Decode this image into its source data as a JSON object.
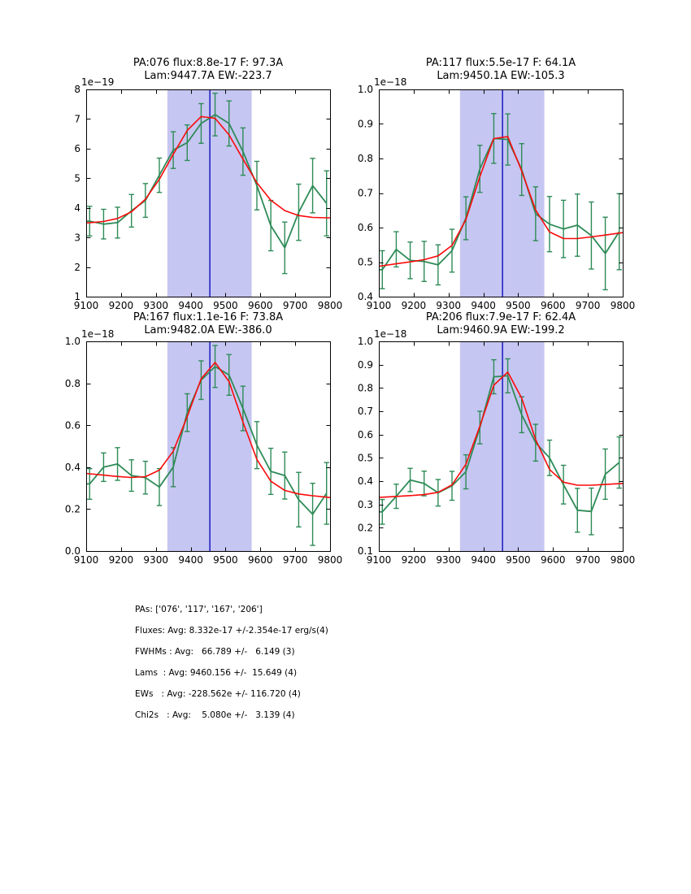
{
  "figure": {
    "background": "#ffffff",
    "colors": {
      "data_line": "#2e8b57",
      "error_bar": "#2e8b57",
      "fit_line": "#fb0b0b",
      "band": "#c6c6f2",
      "vline": "#0000bb",
      "frame": "#000000"
    }
  },
  "chart_data": [
    {
      "type": "line",
      "title_line1": "PA:076 flux:8.8e-17 F: 97.3A",
      "title_line2": "Lam:9447.7A EW:-223.7",
      "y_offset_label": "1e−19",
      "xlim": [
        9100,
        9800
      ],
      "ylim": [
        1,
        8
      ],
      "xtick_vals": [
        9100,
        9200,
        9300,
        9400,
        9500,
        9600,
        9700,
        9800
      ],
      "xtick_labels": [
        "9100",
        "9200",
        "9300",
        "9400",
        "9500",
        "9600",
        "9700",
        "9800"
      ],
      "ytick_vals": [
        1,
        2,
        3,
        4,
        5,
        6,
        7,
        8
      ],
      "ytick_labels": [
        "1",
        "2",
        "3",
        "4",
        "5",
        "6",
        "7",
        "8"
      ],
      "band_x": [
        9333,
        9575
      ],
      "vline_x": 9455,
      "series": [
        {
          "name": "spectrum-data",
          "x": [
            9110,
            9150,
            9190,
            9230,
            9270,
            9310,
            9350,
            9390,
            9430,
            9470,
            9510,
            9550,
            9590,
            9630,
            9670,
            9710,
            9750,
            9790
          ],
          "y": [
            3.55,
            3.45,
            3.5,
            3.9,
            4.25,
            5.1,
            5.95,
            6.2,
            6.85,
            7.15,
            6.85,
            5.9,
            4.75,
            3.4,
            2.65,
            3.85,
            4.75,
            4.15
          ],
          "yerr": [
            0.5,
            0.5,
            0.52,
            0.55,
            0.57,
            0.58,
            0.62,
            0.6,
            0.67,
            0.72,
            0.76,
            0.8,
            0.82,
            0.85,
            0.87,
            0.95,
            0.92,
            1.1
          ]
        },
        {
          "name": "gaussian-fit",
          "fit": {
            "base0": 3.48,
            "slope_per_A": 0.00025,
            "amp": 3.56,
            "center": 9445,
            "sigma": 100
          }
        }
      ]
    },
    {
      "type": "line",
      "title_line1": "PA:117 flux:5.5e-17 F: 64.1A",
      "title_line2": "Lam:9450.1A EW:-105.3",
      "y_offset_label": "1e−18",
      "xlim": [
        9100,
        9800
      ],
      "ylim": [
        0.4,
        1.0
      ],
      "xtick_vals": [
        9100,
        9200,
        9300,
        9400,
        9500,
        9600,
        9700,
        9800
      ],
      "xtick_labels": [
        "9100",
        "9200",
        "9300",
        "9400",
        "9500",
        "9600",
        "9700",
        "9800"
      ],
      "ytick_vals": [
        0.4,
        0.5,
        0.6,
        0.7,
        0.8,
        0.9,
        1.0
      ],
      "ytick_labels": [
        "0.4",
        "0.5",
        "0.6",
        "0.7",
        "0.8",
        "0.9",
        "1.0"
      ],
      "band_x": [
        9333,
        9575
      ],
      "vline_x": 9455,
      "series": [
        {
          "name": "spectrum-data",
          "x": [
            9110,
            9150,
            9190,
            9230,
            9270,
            9310,
            9350,
            9390,
            9430,
            9470,
            9510,
            9550,
            9590,
            9630,
            9670,
            9710,
            9750,
            9790
          ],
          "y": [
            0.478,
            0.537,
            0.505,
            0.502,
            0.492,
            0.533,
            0.627,
            0.77,
            0.858,
            0.855,
            0.768,
            0.64,
            0.61,
            0.596,
            0.607,
            0.577,
            0.525,
            0.588
          ],
          "yerr": [
            0.055,
            0.051,
            0.053,
            0.058,
            0.058,
            0.062,
            0.062,
            0.068,
            0.072,
            0.074,
            0.075,
            0.078,
            0.08,
            0.083,
            0.09,
            0.097,
            0.105,
            0.11
          ]
        },
        {
          "name": "gaussian-fit",
          "fit": {
            "base0": 0.488,
            "slope_per_A": 0.000139,
            "amp": 0.34,
            "center": 9450,
            "sigma": 64
          }
        }
      ]
    },
    {
      "type": "line",
      "title_line1": "PA:167 flux:1.1e-16 F: 73.8A",
      "title_line2": "Lam:9482.0A EW:-386.0",
      "y_offset_label": "1e−18",
      "xlim": [
        9100,
        9800
      ],
      "ylim": [
        0.0,
        1.0
      ],
      "xtick_vals": [
        9100,
        9200,
        9300,
        9400,
        9500,
        9600,
        9700,
        9800
      ],
      "xtick_labels": [
        "9100",
        "9200",
        "9300",
        "9400",
        "9500",
        "9600",
        "9700",
        "9800"
      ],
      "ytick_vals": [
        0.0,
        0.2,
        0.4,
        0.6,
        0.8,
        1.0
      ],
      "ytick_labels": [
        "0.0",
        "0.2",
        "0.4",
        "0.6",
        "0.8",
        "1.0"
      ],
      "band_x": [
        9333,
        9575
      ],
      "vline_x": 9455,
      "series": [
        {
          "name": "spectrum-data",
          "x": [
            9110,
            9150,
            9190,
            9230,
            9270,
            9310,
            9350,
            9390,
            9430,
            9470,
            9510,
            9550,
            9590,
            9630,
            9670,
            9710,
            9750,
            9790
          ],
          "y": [
            0.32,
            0.4,
            0.415,
            0.36,
            0.35,
            0.305,
            0.4,
            0.66,
            0.815,
            0.88,
            0.84,
            0.68,
            0.505,
            0.38,
            0.36,
            0.245,
            0.175,
            0.275
          ],
          "yerr": [
            0.073,
            0.068,
            0.078,
            0.075,
            0.078,
            0.088,
            0.093,
            0.09,
            0.092,
            0.1,
            0.097,
            0.106,
            0.112,
            0.11,
            0.112,
            0.13,
            0.148,
            0.147
          ]
        },
        {
          "name": "gaussian-fit",
          "fit": {
            "base0": 0.37,
            "slope_per_A": -0.000164,
            "amp": 0.59,
            "center": 9470,
            "sigma": 72
          }
        }
      ]
    },
    {
      "type": "line",
      "title_line1": "PA:206 flux:7.9e-17 F: 62.4A",
      "title_line2": "Lam:9460.9A EW:-199.2",
      "y_offset_label": "1e−18",
      "xlim": [
        9100,
        9800
      ],
      "ylim": [
        0.1,
        1.0
      ],
      "xtick_vals": [
        9100,
        9200,
        9300,
        9400,
        9500,
        9600,
        9700,
        9800
      ],
      "xtick_labels": [
        "9100",
        "9200",
        "9300",
        "9400",
        "9500",
        "9600",
        "9700",
        "9800"
      ],
      "ytick_vals": [
        0.1,
        0.2,
        0.3,
        0.4,
        0.5,
        0.6,
        0.7,
        0.8,
        0.9,
        1.0
      ],
      "ytick_labels": [
        "0.1",
        "0.2",
        "0.3",
        "0.4",
        "0.5",
        "0.6",
        "0.7",
        "0.8",
        "0.9",
        "1.0"
      ],
      "band_x": [
        9333,
        9575
      ],
      "vline_x": 9455,
      "series": [
        {
          "name": "spectrum-data",
          "x": [
            9110,
            9150,
            9190,
            9230,
            9270,
            9310,
            9350,
            9390,
            9430,
            9470,
            9510,
            9550,
            9590,
            9630,
            9670,
            9710,
            9750,
            9790
          ],
          "y": [
            0.268,
            0.335,
            0.405,
            0.39,
            0.35,
            0.38,
            0.44,
            0.63,
            0.848,
            0.852,
            0.685,
            0.565,
            0.5,
            0.385,
            0.275,
            0.27,
            0.43,
            0.48
          ],
          "yerr": [
            0.053,
            0.052,
            0.05,
            0.053,
            0.057,
            0.062,
            0.073,
            0.07,
            0.073,
            0.073,
            0.077,
            0.079,
            0.076,
            0.083,
            0.094,
            0.1,
            0.108,
            0.11
          ]
        },
        {
          "name": "gaussian-fit",
          "fit": {
            "base0": 0.33,
            "slope_per_A": 8.57e-05,
            "amp": 0.51,
            "center": 9462,
            "sigma": 66
          }
        }
      ]
    }
  ],
  "fit_sample_x": [
    9100,
    9110,
    9150,
    9190,
    9230,
    9270,
    9310,
    9350,
    9390,
    9430,
    9470,
    9510,
    9550,
    9590,
    9630,
    9670,
    9710,
    9750,
    9790,
    9800
  ],
  "summary": {
    "lines": [
      "PAs: ['076', '117', '167', '206']",
      "Fluxes: Avg: 8.332e-17 +/-2.354e-17 erg/s(4)",
      "FWHMs : Avg:   66.789 +/-   6.149 (3)",
      "Lams  : Avg: 9460.156 +/-  15.649 (4)",
      "EWs   : Avg: -228.562e +/- 116.720 (4)",
      "Chi2s   : Avg:    5.080e +/-   3.139 (4)"
    ]
  }
}
